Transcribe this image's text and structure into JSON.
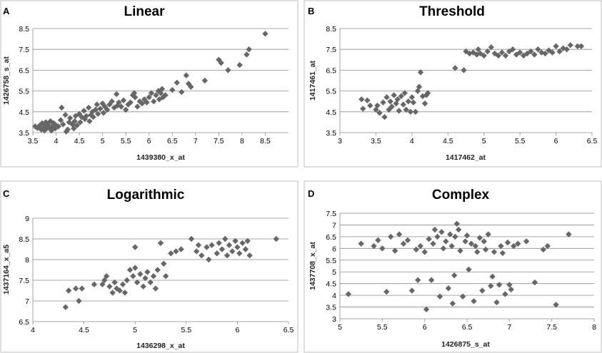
{
  "marker_color": "#676767",
  "grid_color": "#8c8c8c",
  "chart_data": [
    {
      "type": "scatter",
      "panel": "A",
      "title": "Linear",
      "xlabel": "1439380_x_at",
      "ylabel": "1426758_s_at",
      "xlim": [
        3.5,
        9
      ],
      "ylim": [
        3.5,
        8.5
      ],
      "xticks": [
        3.5,
        4,
        4.5,
        5,
        5.5,
        6,
        6.5,
        7,
        7.5,
        8,
        8.5
      ],
      "yticks": [
        3.5,
        4.5,
        5.5,
        6.5,
        7.5,
        8.5
      ],
      "points": [
        [
          3.55,
          3.8
        ],
        [
          3.6,
          3.72
        ],
        [
          3.65,
          3.85
        ],
        [
          3.68,
          3.65
        ],
        [
          3.7,
          3.95
        ],
        [
          3.72,
          3.7
        ],
        [
          3.75,
          3.6
        ],
        [
          3.75,
          3.85
        ],
        [
          3.78,
          4.0
        ],
        [
          3.8,
          3.7
        ],
        [
          3.82,
          3.9
        ],
        [
          3.85,
          3.75
        ],
        [
          3.88,
          4.05
        ],
        [
          3.9,
          3.6
        ],
        [
          3.92,
          3.82
        ],
        [
          3.95,
          3.95
        ],
        [
          3.98,
          3.7
        ],
        [
          4.0,
          3.85
        ],
        [
          4.05,
          3.8
        ],
        [
          4.1,
          4.1
        ],
        [
          4.12,
          4.7
        ],
        [
          4.15,
          3.9
        ],
        [
          4.2,
          4.35
        ],
        [
          4.22,
          3.55
        ],
        [
          4.25,
          3.65
        ],
        [
          4.28,
          4.0
        ],
        [
          4.3,
          4.2
        ],
        [
          4.35,
          3.9
        ],
        [
          4.38,
          3.7
        ],
        [
          4.4,
          4.05
        ],
        [
          4.42,
          4.3
        ],
        [
          4.45,
          3.85
        ],
        [
          4.5,
          4.4
        ],
        [
          4.52,
          4.0
        ],
        [
          4.55,
          4.25
        ],
        [
          4.6,
          4.55
        ],
        [
          4.62,
          4.15
        ],
        [
          4.65,
          4.3
        ],
        [
          4.7,
          4.7
        ],
        [
          4.72,
          4.05
        ],
        [
          4.75,
          4.35
        ],
        [
          4.78,
          4.5
        ],
        [
          4.8,
          4.25
        ],
        [
          4.85,
          4.6
        ],
        [
          4.88,
          4.85
        ],
        [
          4.9,
          4.4
        ],
        [
          4.95,
          4.65
        ],
        [
          5.0,
          4.9
        ],
        [
          5.02,
          4.45
        ],
        [
          5.05,
          4.75
        ],
        [
          5.1,
          4.6
        ],
        [
          5.15,
          4.85
        ],
        [
          5.2,
          5.0
        ],
        [
          5.25,
          4.7
        ],
        [
          5.3,
          5.35
        ],
        [
          5.32,
          4.8
        ],
        [
          5.35,
          4.95
        ],
        [
          5.4,
          4.75
        ],
        [
          5.45,
          5.05
        ],
        [
          5.5,
          4.6
        ],
        [
          5.55,
          4.85
        ],
        [
          5.6,
          4.95
        ],
        [
          5.65,
          5.3
        ],
        [
          5.68,
          5.4
        ],
        [
          5.7,
          5.2
        ],
        [
          5.75,
          4.75
        ],
        [
          5.8,
          5.0
        ],
        [
          5.85,
          4.9
        ],
        [
          5.9,
          5.1
        ],
        [
          5.95,
          4.95
        ],
        [
          6.0,
          5.2
        ],
        [
          6.05,
          5.4
        ],
        [
          6.1,
          5.0
        ],
        [
          6.15,
          5.3
        ],
        [
          6.2,
          5.5
        ],
        [
          6.22,
          5.1
        ],
        [
          6.25,
          5.4
        ],
        [
          6.28,
          5.6
        ],
        [
          6.3,
          5.2
        ],
        [
          6.35,
          5.3
        ],
        [
          6.5,
          5.55
        ],
        [
          6.6,
          5.9
        ],
        [
          6.7,
          5.45
        ],
        [
          6.8,
          6.25
        ],
        [
          6.85,
          5.85
        ],
        [
          6.9,
          5.7
        ],
        [
          7.2,
          6.0
        ],
        [
          7.5,
          7.0
        ],
        [
          7.55,
          6.85
        ],
        [
          7.7,
          6.5
        ],
        [
          7.95,
          6.75
        ],
        [
          8.1,
          7.25
        ],
        [
          8.15,
          7.5
        ],
        [
          8.5,
          8.25
        ]
      ]
    },
    {
      "type": "scatter",
      "panel": "B",
      "title": "Threshold",
      "xlabel": "1417462_at",
      "ylabel": "1417461_at",
      "xlim": [
        3,
        6.5
      ],
      "ylim": [
        3.5,
        8.5
      ],
      "xticks": [
        3,
        3.5,
        4,
        4.5,
        5,
        5.5,
        6,
        6.5
      ],
      "yticks": [
        3.5,
        4.5,
        5.5,
        6.5,
        7.5,
        8.5
      ],
      "points": [
        [
          3.3,
          5.1
        ],
        [
          3.32,
          4.65
        ],
        [
          3.38,
          5.05
        ],
        [
          3.42,
          4.8
        ],
        [
          3.5,
          4.6
        ],
        [
          3.52,
          4.8
        ],
        [
          3.55,
          4.45
        ],
        [
          3.6,
          4.95
        ],
        [
          3.62,
          4.25
        ],
        [
          3.65,
          5.2
        ],
        [
          3.68,
          4.6
        ],
        [
          3.7,
          5.0
        ],
        [
          3.72,
          4.75
        ],
        [
          3.75,
          5.3
        ],
        [
          3.78,
          4.9
        ],
        [
          3.8,
          5.1
        ],
        [
          3.82,
          4.55
        ],
        [
          3.85,
          5.25
        ],
        [
          3.88,
          4.85
        ],
        [
          3.9,
          5.4
        ],
        [
          3.92,
          4.6
        ],
        [
          3.95,
          5.0
        ],
        [
          3.98,
          4.5
        ],
        [
          4.0,
          5.2
        ],
        [
          4.02,
          4.95
        ],
        [
          4.05,
          4.5
        ],
        [
          4.08,
          5.5
        ],
        [
          4.1,
          5.7
        ],
        [
          4.12,
          6.4
        ],
        [
          4.15,
          5.25
        ],
        [
          4.18,
          4.9
        ],
        [
          4.2,
          5.3
        ],
        [
          4.22,
          5.4
        ],
        [
          4.6,
          6.6
        ],
        [
          4.72,
          6.5
        ],
        [
          4.75,
          7.4
        ],
        [
          4.8,
          7.3
        ],
        [
          4.85,
          7.35
        ],
        [
          4.9,
          7.25
        ],
        [
          4.92,
          7.5
        ],
        [
          4.95,
          7.3
        ],
        [
          5.0,
          7.2
        ],
        [
          5.05,
          7.4
        ],
        [
          5.1,
          7.6
        ],
        [
          5.15,
          7.3
        ],
        [
          5.2,
          7.2
        ],
        [
          5.25,
          7.35
        ],
        [
          5.3,
          7.2
        ],
        [
          5.35,
          7.4
        ],
        [
          5.4,
          7.5
        ],
        [
          5.45,
          7.25
        ],
        [
          5.5,
          7.35
        ],
        [
          5.55,
          7.2
        ],
        [
          5.6,
          7.3
        ],
        [
          5.65,
          7.4
        ],
        [
          5.7,
          7.25
        ],
        [
          5.75,
          7.5
        ],
        [
          5.8,
          7.35
        ],
        [
          5.85,
          7.3
        ],
        [
          5.9,
          7.45
        ],
        [
          5.95,
          7.35
        ],
        [
          6.0,
          7.65
        ],
        [
          6.05,
          7.4
        ],
        [
          6.1,
          7.55
        ],
        [
          6.15,
          7.5
        ],
        [
          6.2,
          7.7
        ],
        [
          6.3,
          7.65
        ],
        [
          6.35,
          7.65
        ]
      ]
    },
    {
      "type": "scatter",
      "panel": "C",
      "title": "Logarithmic",
      "xlabel": "1436298_x_at",
      "ylabel": "1437164_x_a5",
      "xlim": [
        4,
        6.5
      ],
      "ylim": [
        6.5,
        9
      ],
      "xticks": [
        4,
        4.5,
        5,
        5.5,
        6,
        6.5
      ],
      "yticks": [
        6.5,
        7,
        7.5,
        8,
        8.5,
        9
      ],
      "points": [
        [
          4.32,
          6.85
        ],
        [
          4.35,
          7.25
        ],
        [
          4.42,
          7.3
        ],
        [
          4.45,
          7.0
        ],
        [
          4.48,
          7.3
        ],
        [
          4.6,
          7.4
        ],
        [
          4.68,
          7.4
        ],
        [
          4.7,
          7.5
        ],
        [
          4.72,
          7.6
        ],
        [
          4.75,
          7.35
        ],
        [
          4.78,
          7.2
        ],
        [
          4.8,
          7.45
        ],
        [
          4.82,
          7.3
        ],
        [
          4.85,
          7.25
        ],
        [
          4.88,
          7.4
        ],
        [
          4.9,
          7.2
        ],
        [
          4.92,
          7.5
        ],
        [
          4.95,
          7.75
        ],
        [
          4.98,
          7.6
        ],
        [
          5.0,
          7.8
        ],
        [
          5.0,
          8.3
        ],
        [
          5.02,
          7.45
        ],
        [
          5.05,
          7.65
        ],
        [
          5.08,
          7.35
        ],
        [
          5.1,
          7.55
        ],
        [
          5.12,
          7.7
        ],
        [
          5.15,
          7.45
        ],
        [
          5.18,
          7.6
        ],
        [
          5.2,
          7.3
        ],
        [
          5.22,
          7.75
        ],
        [
          5.25,
          8.4
        ],
        [
          5.28,
          7.9
        ],
        [
          5.3,
          7.6
        ],
        [
          5.35,
          8.15
        ],
        [
          5.4,
          8.2
        ],
        [
          5.45,
          8.25
        ],
        [
          5.55,
          8.5
        ],
        [
          5.6,
          8.2
        ],
        [
          5.62,
          8.35
        ],
        [
          5.65,
          8.1
        ],
        [
          5.7,
          8.3
        ],
        [
          5.72,
          8.0
        ],
        [
          5.75,
          8.35
        ],
        [
          5.8,
          8.15
        ],
        [
          5.82,
          8.4
        ],
        [
          5.85,
          8.25
        ],
        [
          5.88,
          8.5
        ],
        [
          5.9,
          8.1
        ],
        [
          5.92,
          8.35
        ],
        [
          5.95,
          8.2
        ],
        [
          5.98,
          8.45
        ],
        [
          6.0,
          8.3
        ],
        [
          6.02,
          8.15
        ],
        [
          6.05,
          8.4
        ],
        [
          6.08,
          8.25
        ],
        [
          6.1,
          8.45
        ],
        [
          6.12,
          8.1
        ],
        [
          6.38,
          8.5
        ]
      ]
    },
    {
      "type": "scatter",
      "panel": "D",
      "title": "Complex",
      "xlabel": "1426875_s_at",
      "ylabel": "1437708_x_at",
      "xlim": [
        5,
        8
      ],
      "ylim": [
        3,
        7.5
      ],
      "xticks": [
        5,
        5.5,
        6,
        6.5,
        7,
        7.5,
        8
      ],
      "yticks": [
        3,
        3.5,
        4,
        4.5,
        5,
        5.5,
        6,
        6.5,
        7,
        7.5
      ],
      "points": [
        [
          5.1,
          4.05
        ],
        [
          5.25,
          6.2
        ],
        [
          5.4,
          6.1
        ],
        [
          5.45,
          6.35
        ],
        [
          5.5,
          6.0
        ],
        [
          5.55,
          4.15
        ],
        [
          5.6,
          6.5
        ],
        [
          5.65,
          5.9
        ],
        [
          5.7,
          6.6
        ],
        [
          5.75,
          6.2
        ],
        [
          5.8,
          6.35
        ],
        [
          5.85,
          4.2
        ],
        [
          5.9,
          5.95
        ],
        [
          5.92,
          4.65
        ],
        [
          5.95,
          6.1
        ],
        [
          6.0,
          5.85
        ],
        [
          6.02,
          3.4
        ],
        [
          6.05,
          6.4
        ],
        [
          6.08,
          4.65
        ],
        [
          6.1,
          6.2
        ],
        [
          6.12,
          6.8
        ],
        [
          6.15,
          6.5
        ],
        [
          6.18,
          3.95
        ],
        [
          6.2,
          6.7
        ],
        [
          6.22,
          6.0
        ],
        [
          6.25,
          6.3
        ],
        [
          6.28,
          4.3
        ],
        [
          6.3,
          6.6
        ],
        [
          6.32,
          6.1
        ],
        [
          6.33,
          3.65
        ],
        [
          6.35,
          4.85
        ],
        [
          6.36,
          6.5
        ],
        [
          6.38,
          7.05
        ],
        [
          6.4,
          6.8
        ],
        [
          6.42,
          5.9
        ],
        [
          6.45,
          3.95
        ],
        [
          6.48,
          6.3
        ],
        [
          6.5,
          6.55
        ],
        [
          6.52,
          5.1
        ],
        [
          6.55,
          6.2
        ],
        [
          6.58,
          3.75
        ],
        [
          6.6,
          6.1
        ],
        [
          6.62,
          5.85
        ],
        [
          6.65,
          6.45
        ],
        [
          6.68,
          4.2
        ],
        [
          6.7,
          6.3
        ],
        [
          6.72,
          5.95
        ],
        [
          6.75,
          6.6
        ],
        [
          6.78,
          4.4
        ],
        [
          6.8,
          4.8
        ],
        [
          6.82,
          5.85
        ],
        [
          6.85,
          3.7
        ],
        [
          6.88,
          4.45
        ],
        [
          6.9,
          6.1
        ],
        [
          6.92,
          5.8
        ],
        [
          6.95,
          4.05
        ],
        [
          6.98,
          6.25
        ],
        [
          7.0,
          4.45
        ],
        [
          7.02,
          4.25
        ],
        [
          7.05,
          6.1
        ],
        [
          7.1,
          6.2
        ],
        [
          7.2,
          6.3
        ],
        [
          7.3,
          4.55
        ],
        [
          7.4,
          5.95
        ],
        [
          7.45,
          6.1
        ],
        [
          7.55,
          3.6
        ],
        [
          7.7,
          6.6
        ]
      ]
    }
  ]
}
